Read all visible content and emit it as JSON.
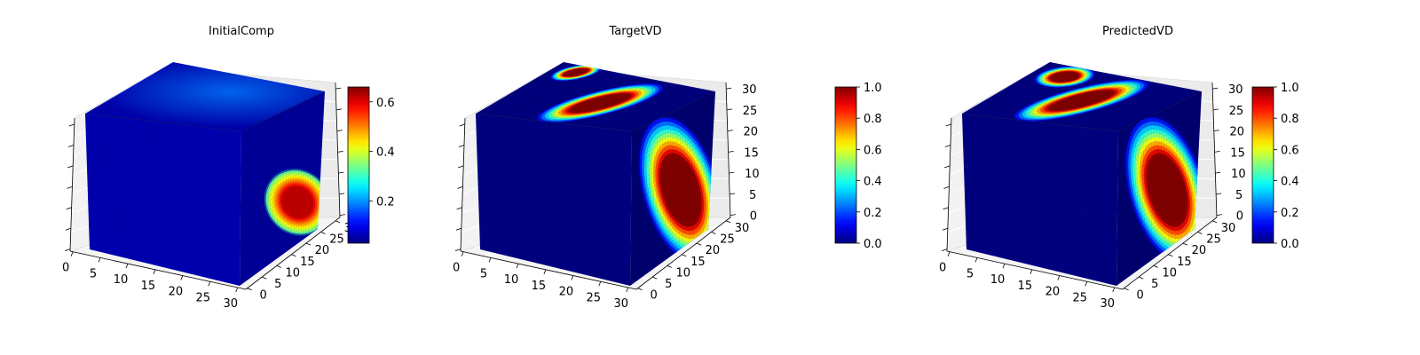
{
  "chart_data": [
    {
      "type": "heatmap",
      "title": "InitialComp",
      "projection": "3d voxel cube",
      "colormap": "jet",
      "x_ticks": [
        "0",
        "5",
        "10",
        "15",
        "20",
        "25",
        "30"
      ],
      "y_ticks": [
        "0",
        "5",
        "10",
        "15",
        "20",
        "25",
        "30"
      ],
      "z_ticks": [],
      "z_tick_count": 7,
      "colorbar": {
        "min": 0.03,
        "max": 0.66,
        "ticks": [
          "0.2",
          "0.4",
          "0.6"
        ],
        "tick_values": [
          0.2,
          0.4,
          0.6
        ]
      },
      "high_regions": [
        {
          "face": "right",
          "center": [
            0.72,
            0.7
          ],
          "radius": [
            0.26,
            0.16
          ],
          "value": 0.62,
          "base": 0.3,
          "rotation": -28
        }
      ],
      "top_glow": {
        "value": 0.18,
        "center": [
          0.7,
          0.55
        ]
      },
      "background_value": 0.06
    },
    {
      "type": "heatmap",
      "title": "TargetVD",
      "projection": "3d voxel cube",
      "colormap": "jet",
      "x_ticks": [
        "0",
        "5",
        "10",
        "15",
        "20",
        "25",
        "30"
      ],
      "y_ticks": [
        "0",
        "5",
        "10",
        "15",
        "20",
        "25",
        "30"
      ],
      "z_ticks": [
        "0",
        "5",
        "10",
        "15",
        "20",
        "25",
        "30"
      ],
      "colorbar": {
        "min": 0.0,
        "max": 1.0,
        "ticks": [
          "0.0",
          "0.2",
          "0.4",
          "0.6",
          "0.8",
          "1.0"
        ],
        "tick_values": [
          0.0,
          0.2,
          0.4,
          0.6,
          0.8,
          1.0
        ]
      },
      "high_regions": [
        {
          "face": "top",
          "center": [
            0.45,
            0.55
          ],
          "radius": [
            0.3,
            0.14
          ],
          "value": 1.0,
          "rotation": -8
        },
        {
          "face": "top",
          "center": [
            0.88,
            0.15
          ],
          "radius": [
            0.12,
            0.08
          ],
          "value": 1.0,
          "rotation": -5
        },
        {
          "face": "right",
          "center": [
            0.62,
            0.58
          ],
          "radius": [
            0.32,
            0.36
          ],
          "value": 1.0,
          "rotation": 0
        }
      ],
      "background_value": 0.0
    },
    {
      "type": "heatmap",
      "title": "PredictedVD",
      "projection": "3d voxel cube",
      "colormap": "jet",
      "x_ticks": [
        "0",
        "5",
        "10",
        "15",
        "20",
        "25",
        "30"
      ],
      "y_ticks": [
        "0",
        "5",
        "10",
        "15",
        "20",
        "25",
        "30"
      ],
      "z_ticks": [
        "0",
        "5",
        "10",
        "15",
        "20",
        "25",
        "30"
      ],
      "colorbar": {
        "min": 0.0,
        "max": 1.0,
        "ticks": [
          "0.0",
          "0.2",
          "0.4",
          "0.6",
          "0.8",
          "1.0"
        ],
        "tick_values": [
          0.0,
          0.2,
          0.4,
          0.6,
          0.8,
          1.0
        ]
      },
      "high_regions": [
        {
          "face": "top",
          "center": [
            0.48,
            0.5
          ],
          "radius": [
            0.32,
            0.15
          ],
          "value": 1.0,
          "rotation": -8
        },
        {
          "face": "top",
          "center": [
            0.82,
            0.2
          ],
          "radius": [
            0.14,
            0.12
          ],
          "value": 1.0,
          "rotation": 0
        },
        {
          "face": "right",
          "center": [
            0.62,
            0.58
          ],
          "radius": [
            0.32,
            0.36
          ],
          "value": 1.0,
          "rotation": 0
        }
      ],
      "background_value": 0.0
    }
  ]
}
